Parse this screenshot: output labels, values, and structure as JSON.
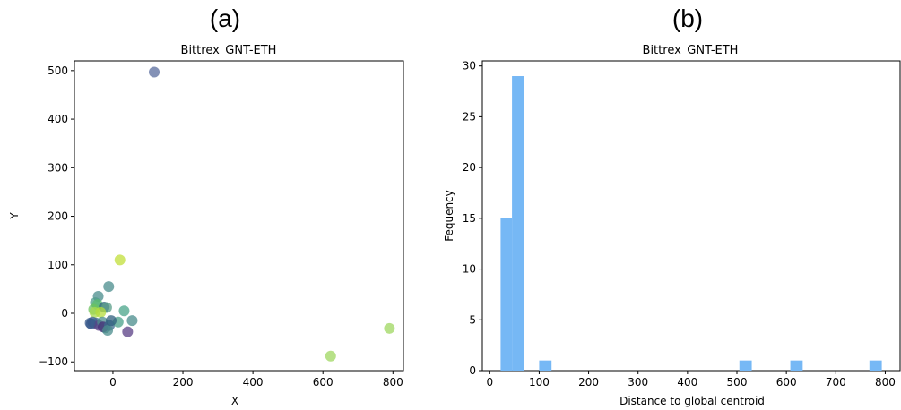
{
  "panels": [
    {
      "letter": "(a)"
    },
    {
      "letter": "(b)"
    }
  ],
  "chart_data": [
    {
      "type": "scatter",
      "title": "Bittrex_GNT-ETH",
      "xlabel": "X",
      "ylabel": "Y",
      "xlim": [
        -110,
        830
      ],
      "ylim": [
        -118,
        520
      ],
      "xticks": [
        0,
        200,
        400,
        600,
        800
      ],
      "yticks": [
        -100,
        0,
        100,
        200,
        300,
        400,
        500
      ],
      "colormap": "viridis",
      "points": [
        {
          "x": 118,
          "y": 497,
          "color": "#5a6c9e"
        },
        {
          "x": 20,
          "y": 110,
          "color": "#c2df3a"
        },
        {
          "x": 790,
          "y": -31,
          "color": "#9fd760"
        },
        {
          "x": 622,
          "y": -88,
          "color": "#9fd760"
        },
        {
          "x": -12,
          "y": 55,
          "color": "#4a8c8c"
        },
        {
          "x": -42,
          "y": 35,
          "color": "#4a8c8c"
        },
        {
          "x": -50,
          "y": 22,
          "color": "#4d9c8a"
        },
        {
          "x": -44,
          "y": 18,
          "color": "#5bbd6e"
        },
        {
          "x": -55,
          "y": 8,
          "color": "#6cc35f"
        },
        {
          "x": -25,
          "y": 13,
          "color": "#2f5f7e"
        },
        {
          "x": -18,
          "y": 12,
          "color": "#5a9e88"
        },
        {
          "x": -52,
          "y": 2,
          "color": "#a8d94e"
        },
        {
          "x": -35,
          "y": 2,
          "color": "#b6dc3c"
        },
        {
          "x": 32,
          "y": 5,
          "color": "#49a48a"
        },
        {
          "x": -58,
          "y": -18,
          "color": "#3b5c8c"
        },
        {
          "x": -62,
          "y": -22,
          "color": "#2b4a86"
        },
        {
          "x": -48,
          "y": -20,
          "color": "#3d6a8e"
        },
        {
          "x": -40,
          "y": -25,
          "color": "#5a3f86"
        },
        {
          "x": -30,
          "y": -18,
          "color": "#4a8c8c"
        },
        {
          "x": -22,
          "y": -30,
          "color": "#4a8c8c"
        },
        {
          "x": -28,
          "y": -28,
          "color": "#4a2f7a"
        },
        {
          "x": -10,
          "y": -25,
          "color": "#3d6a8e"
        },
        {
          "x": -15,
          "y": -35,
          "color": "#4a8c8c"
        },
        {
          "x": 15,
          "y": -18,
          "color": "#4aa08a"
        },
        {
          "x": 55,
          "y": -15,
          "color": "#4a8c8c"
        },
        {
          "x": 42,
          "y": -38,
          "color": "#5a3f86"
        },
        {
          "x": -5,
          "y": -15,
          "color": "#2f5f7e"
        },
        {
          "x": -65,
          "y": -20,
          "color": "#3b5c8c"
        }
      ]
    },
    {
      "type": "bar",
      "title": "Bittrex_GNT-ETH",
      "xlabel": "Distance to global centroid",
      "ylabel": "Fequency",
      "xlim": [
        -15,
        830
      ],
      "ylim": [
        0,
        30.5
      ],
      "xticks": [
        0,
        100,
        200,
        300,
        400,
        500,
        600,
        700,
        800
      ],
      "yticks": [
        0,
        5,
        10,
        15,
        20,
        25,
        30
      ],
      "bar_color": "#76b8f5",
      "bins": [
        {
          "x0": 22,
          "x1": 45,
          "count": 15
        },
        {
          "x0": 45,
          "x1": 70,
          "count": 29
        },
        {
          "x0": 100,
          "x1": 125,
          "count": 1
        },
        {
          "x0": 505,
          "x1": 530,
          "count": 1
        },
        {
          "x0": 608,
          "x1": 633,
          "count": 1
        },
        {
          "x0": 768,
          "x1": 793,
          "count": 1
        }
      ]
    }
  ]
}
